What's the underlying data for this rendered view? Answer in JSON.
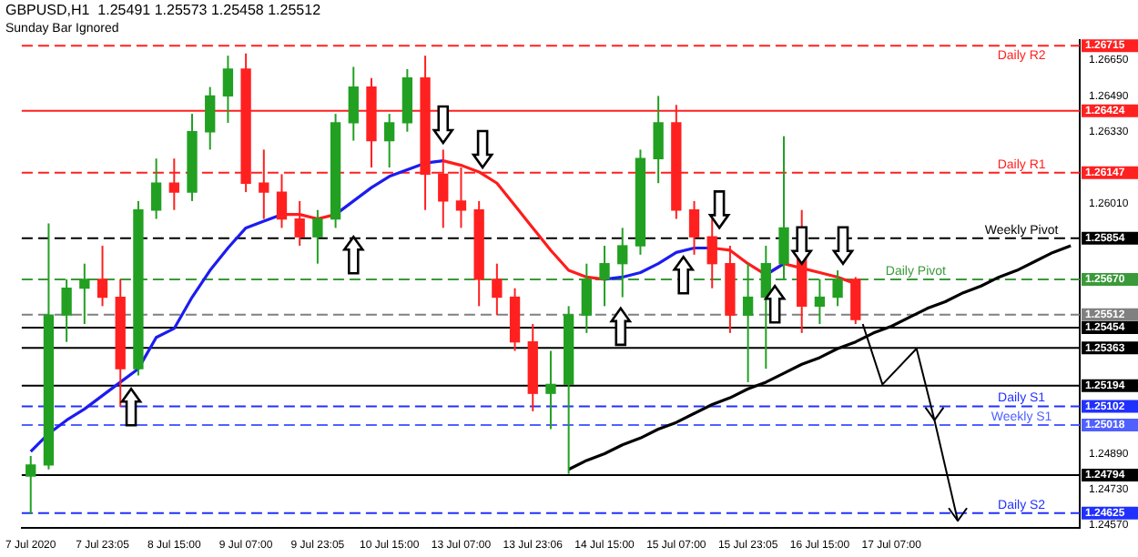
{
  "chart_data": {
    "type": "candlestick",
    "title": "GBPUSD,H1  1.25491 1.25573 1.25458 1.25512",
    "subtitle": "Sunday Bar Ignored",
    "categories": [
      "7 Jul 2020",
      null,
      null,
      null,
      "7 Jul 23:05",
      null,
      null,
      null,
      "8 Jul 15:00",
      null,
      null,
      null,
      "9 Jul 07:00",
      null,
      null,
      null,
      "9 Jul 23:05",
      null,
      null,
      null,
      "10 Jul 15:00",
      null,
      null,
      null,
      "13 Jul 07:00",
      null,
      null,
      null,
      "13 Jul 23:06",
      null,
      null,
      null,
      "14 Jul 15:00",
      null,
      null,
      null,
      "15 Jul 07:00",
      null,
      null,
      null,
      "15 Jul 23:05",
      null,
      null,
      null,
      "16 Jul 15:00",
      null,
      null,
      null,
      "17 Jul 07:00",
      null,
      null,
      null,
      null,
      null,
      null,
      null,
      null,
      null,
      null
    ],
    "ohlc": [
      [
        1.2479,
        1.2488,
        1.2462,
        1.2484
      ],
      [
        1.2484,
        1.2592,
        1.2482,
        1.2551
      ],
      [
        1.2551,
        1.2567,
        1.2539,
        1.2563
      ],
      [
        1.2563,
        1.2574,
        1.2547,
        1.2567
      ],
      [
        1.2567,
        1.2582,
        1.2555,
        1.2559
      ],
      [
        1.2559,
        1.2567,
        1.251,
        1.2527
      ],
      [
        1.2527,
        1.2602,
        1.2524,
        1.2598
      ],
      [
        1.2598,
        1.2621,
        1.2594,
        1.261
      ],
      [
        1.261,
        1.2621,
        1.2598,
        1.2606
      ],
      [
        1.2606,
        1.2641,
        1.2602,
        1.2633
      ],
      [
        1.2633,
        1.2653,
        1.2625,
        1.2649
      ],
      [
        1.2649,
        1.2667,
        1.2637,
        1.2661
      ],
      [
        1.2661,
        1.2668,
        1.2606,
        1.261
      ],
      [
        1.261,
        1.2625,
        1.2594,
        1.2606
      ],
      [
        1.2606,
        1.2614,
        1.259,
        1.2594
      ],
      [
        1.2594,
        1.2602,
        1.2582,
        1.2586
      ],
      [
        1.2586,
        1.2598,
        1.2574,
        1.2594
      ],
      [
        1.2594,
        1.2641,
        1.259,
        1.2637
      ],
      [
        1.2637,
        1.2662,
        1.2629,
        1.2653
      ],
      [
        1.2653,
        1.2657,
        1.2617,
        1.2629
      ],
      [
        1.2629,
        1.2641,
        1.2617,
        1.2637
      ],
      [
        1.2637,
        1.2661,
        1.2633,
        1.2657
      ],
      [
        1.2657,
        1.2667,
        1.2598,
        1.2614
      ],
      [
        1.2614,
        1.2625,
        1.259,
        1.2602
      ],
      [
        1.2602,
        1.2617,
        1.259,
        1.2598
      ],
      [
        1.2598,
        1.2602,
        1.2555,
        1.2567
      ],
      [
        1.2567,
        1.2574,
        1.2551,
        1.2559
      ],
      [
        1.2559,
        1.2563,
        1.2535,
        1.2539
      ],
      [
        1.2539,
        1.2547,
        1.2508,
        1.2516
      ],
      [
        1.2516,
        1.2535,
        1.25,
        1.252
      ],
      [
        1.252,
        1.2555,
        1.248,
        1.2551
      ],
      [
        1.2551,
        1.2574,
        1.2543,
        1.2567
      ],
      [
        1.2567,
        1.2582,
        1.2555,
        1.2574
      ],
      [
        1.2574,
        1.259,
        1.2559,
        1.2582
      ],
      [
        1.2582,
        1.2625,
        1.2578,
        1.2621
      ],
      [
        1.2621,
        1.2649,
        1.261,
        1.2637
      ],
      [
        1.2637,
        1.2645,
        1.2594,
        1.2598
      ],
      [
        1.2598,
        1.2602,
        1.2578,
        1.2586
      ],
      [
        1.2586,
        1.2594,
        1.2563,
        1.2574
      ],
      [
        1.2574,
        1.2582,
        1.2543,
        1.2551
      ],
      [
        1.2551,
        1.2574,
        1.2521,
        1.2559
      ],
      [
        1.2559,
        1.2582,
        1.2527,
        1.2574
      ],
      [
        1.2574,
        1.2631,
        1.2567,
        1.259
      ],
      [
        1.259,
        1.2598,
        1.2543,
        1.2555
      ],
      [
        1.2555,
        1.2567,
        1.2547,
        1.2559
      ],
      [
        1.2559,
        1.2571,
        1.2555,
        1.2567
      ],
      [
        1.2567,
        1.2568,
        1.2547,
        1.2549
      ],
      null,
      null,
      null,
      null,
      null,
      null,
      null,
      null,
      null,
      null,
      null,
      null
    ],
    "colors": [
      "#22a022",
      "#22a022",
      "#22a022",
      "#22a022",
      "#ff2020",
      "#ff2020",
      "#22a022",
      "#22a022",
      "#ff2020",
      "#22a022",
      "#22a022",
      "#22a022",
      "#ff2020",
      "#ff2020",
      "#ff2020",
      "#ff2020",
      "#22a022",
      "#22a022",
      "#22a022",
      "#ff2020",
      "#22a022",
      "#22a022",
      "#ff2020",
      "#ff2020",
      "#ff2020",
      "#ff2020",
      "#ff2020",
      "#ff2020",
      "#ff2020",
      "#22a022",
      "#22a022",
      "#22a022",
      "#22a022",
      "#22a022",
      "#22a022",
      "#22a022",
      "#ff2020",
      "#ff2020",
      "#ff2020",
      "#ff2020",
      "#22a022",
      "#22a022",
      "#22a022",
      "#ff2020",
      "#22a022",
      "#22a022",
      "#ff2020",
      null,
      null,
      null,
      null,
      null,
      null,
      null,
      null,
      null,
      null,
      null,
      null
    ],
    "series": [
      {
        "type": "line",
        "color": "#1c1cf0",
        "values": [
          1.249,
          1.2498,
          1.2504,
          1.2509,
          1.2515,
          1.2521,
          1.2527,
          1.2541,
          1.2545,
          1.2559,
          1.2571,
          1.2581,
          1.259,
          1.2593,
          1.2596,
          null,
          null,
          1.2596,
          1.2602,
          1.2608,
          1.2613,
          1.2616,
          1.2619,
          1.262,
          null,
          null,
          null,
          null,
          null,
          null,
          null,
          null,
          1.2567,
          1.2568,
          1.257,
          1.2574,
          1.2579,
          1.2581,
          1.2581,
          null,
          null,
          1.2569,
          1.2574,
          null,
          null,
          null,
          null,
          null,
          null,
          null,
          null,
          null,
          null,
          null,
          null,
          null,
          null,
          null,
          null
        ]
      },
      {
        "type": "line",
        "color": "#ff1c1c",
        "values": [
          null,
          null,
          null,
          null,
          null,
          null,
          null,
          null,
          null,
          null,
          null,
          null,
          null,
          null,
          1.2596,
          1.2596,
          1.2594,
          1.2596,
          null,
          null,
          null,
          null,
          null,
          1.262,
          1.2618,
          1.2615,
          1.261,
          1.26,
          1.259,
          1.258,
          1.2571,
          1.2568,
          1.2567,
          null,
          null,
          null,
          null,
          null,
          1.2581,
          1.258,
          1.2574,
          1.2569,
          1.2574,
          1.2572,
          1.257,
          1.2568,
          1.2565,
          null,
          null,
          null,
          null,
          null,
          null,
          null,
          null,
          null,
          null,
          null,
          null
        ]
      },
      {
        "type": "line",
        "color": "#000000",
        "values": [
          null,
          null,
          null,
          null,
          null,
          null,
          null,
          null,
          null,
          null,
          null,
          null,
          null,
          null,
          null,
          null,
          null,
          null,
          null,
          null,
          null,
          null,
          null,
          null,
          null,
          null,
          null,
          null,
          null,
          null,
          1.2482,
          1.2486,
          1.2489,
          1.2493,
          1.2496,
          1.25,
          1.2503,
          1.2507,
          1.2511,
          1.2514,
          1.2518,
          1.2521,
          1.2525,
          1.2529,
          1.2532,
          1.2536,
          1.2539,
          1.2543,
          1.2546,
          1.255,
          1.2554,
          1.2557,
          1.2561,
          1.2564,
          1.2568,
          1.2571,
          1.2575,
          1.2579,
          1.2582
        ]
      }
    ],
    "ylim": [
      1.2456,
      1.2674
    ],
    "yticks": [
      {
        "value": 1.2665,
        "label": "1.26650"
      },
      {
        "value": 1.2649,
        "label": "1.26490"
      },
      {
        "value": 1.2633,
        "label": "1.26330"
      },
      {
        "value": 1.2601,
        "label": "1.26010"
      },
      {
        "value": 1.2489,
        "label": "1.24890"
      },
      {
        "value": 1.2473,
        "label": "1.24730"
      },
      {
        "value": 1.2457,
        "label": "1.24570"
      }
    ],
    "y2lim": [
      1.2456,
      1.2674
    ],
    "y2ticks": [
      {
        "value": 1.26715,
        "label": "1.26715"
      },
      {
        "value": 1.26424,
        "label": "1.26424"
      },
      {
        "value": 1.26147,
        "label": "1.26147"
      },
      {
        "value": 1.25854,
        "label": "1.25854"
      },
      {
        "value": 1.2567,
        "label": "1.25670"
      },
      {
        "value": 1.25512,
        "label": "1.25512"
      },
      {
        "value": 1.25454,
        "label": "1.25454"
      },
      {
        "value": 1.25363,
        "label": "1.25363"
      },
      {
        "value": 1.25194,
        "label": "1.25194"
      },
      {
        "value": 1.25102,
        "label": "1.25102"
      },
      {
        "value": 1.25018,
        "label": "1.25018"
      },
      {
        "value": 1.24794,
        "label": "1.24794"
      },
      {
        "value": 1.24625,
        "label": "1.24625"
      }
    ],
    "ref_lines": [
      {
        "axis": "y",
        "value": 1.26715,
        "label": "Daily R2",
        "color": "#ff2020",
        "line_style": "dashed"
      },
      {
        "axis": "y",
        "value": 1.26424,
        "color": "#ff2020",
        "line_style": "solid"
      },
      {
        "axis": "y",
        "value": 1.26147,
        "label": "Daily R1",
        "color": "#ff2020",
        "line_style": "dashed"
      },
      {
        "axis": "y",
        "value": 1.25854,
        "label": "Weekly Pivot",
        "color": "#000000",
        "line_style": "dashed"
      },
      {
        "axis": "y",
        "value": 1.2567,
        "label": "Daily Pivot",
        "color": "#3a9a3a",
        "line_style": "dashed"
      },
      {
        "axis": "y",
        "value": 1.25512,
        "color": "#808080",
        "line_style": "dashed"
      },
      {
        "axis": "y",
        "value": 1.25454,
        "color": "#000000",
        "line_style": "solid"
      },
      {
        "axis": "y",
        "value": 1.25363,
        "color": "#000000",
        "line_style": "solid"
      },
      {
        "axis": "y",
        "value": 1.25194,
        "color": "#000000",
        "line_style": "solid"
      },
      {
        "axis": "y",
        "value": 1.25102,
        "label": "Daily S1",
        "color": "#2030ff",
        "line_style": "dashed"
      },
      {
        "axis": "y",
        "value": 1.25018,
        "label": "Weekly S1",
        "color": "#5060ff",
        "line_style": "dashed"
      },
      {
        "axis": "y",
        "value": 1.24794,
        "color": "#000000",
        "line_style": "solid"
      },
      {
        "axis": "y",
        "value": 1.24625,
        "label": "Daily S2",
        "color": "#2030ff",
        "line_style": "dashed"
      }
    ],
    "grid": false,
    "legend": false,
    "marker": "none"
  }
}
